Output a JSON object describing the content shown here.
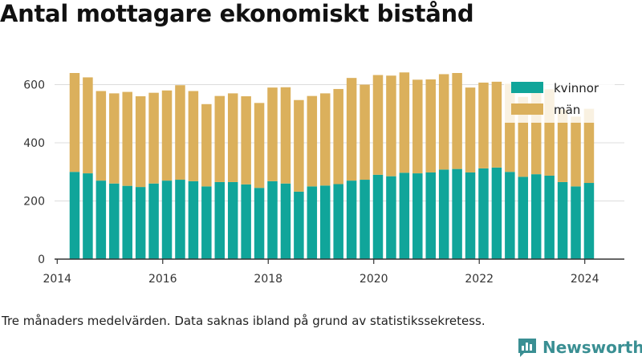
{
  "title": "Antal mottagare ekonomiskt bistånd",
  "note": "Tre månaders medelvärden. Data saknas ibland på grund av statistikssekretess.",
  "brand": "Newsworthy",
  "colors": {
    "kvinnor": "#10a59a",
    "man": "#dbb05c",
    "brand": "#3a8f93"
  },
  "legend": {
    "kvinnor": "kvinnor",
    "man": "män"
  },
  "chart_data": {
    "type": "bar",
    "stacked": true,
    "x_ticks": [
      2014,
      2016,
      2018,
      2020,
      2022,
      2024
    ],
    "y_ticks": [
      0,
      200,
      400,
      600
    ],
    "ylim": [
      0,
      720
    ],
    "xlim": [
      2013.95,
      2024.75
    ],
    "grid": true,
    "legend_position": "top-right",
    "x": [
      2014.33,
      2014.58,
      2014.83,
      2015.08,
      2015.33,
      2015.58,
      2015.83,
      2016.08,
      2016.33,
      2016.58,
      2016.83,
      2017.08,
      2017.33,
      2017.58,
      2017.83,
      2018.08,
      2018.33,
      2018.58,
      2018.83,
      2019.08,
      2019.33,
      2019.58,
      2019.83,
      2020.08,
      2020.33,
      2020.58,
      2020.83,
      2021.08,
      2021.33,
      2021.58,
      2021.83,
      2022.08,
      2022.33,
      2022.58,
      2022.83,
      2023.08,
      2023.33,
      2023.58,
      2023.83,
      2024.08
    ],
    "series": [
      {
        "name": "kvinnor",
        "values": [
          300,
          295,
          270,
          260,
          252,
          248,
          260,
          270,
          273,
          268,
          250,
          265,
          265,
          257,
          245,
          268,
          260,
          232,
          250,
          253,
          258,
          270,
          273,
          290,
          285,
          297,
          295,
          298,
          308,
          310,
          298,
          312,
          315,
          300,
          283,
          292,
          287,
          265,
          250,
          262
        ]
      },
      {
        "name": "män",
        "values": [
          340,
          330,
          308,
          310,
          323,
          312,
          312,
          310,
          325,
          310,
          283,
          296,
          305,
          303,
          292,
          322,
          331,
          315,
          311,
          317,
          327,
          353,
          327,
          343,
          346,
          345,
          322,
          320,
          328,
          330,
          292,
          295,
          295,
          303,
          275,
          285,
          297,
          250,
          240,
          255
        ]
      }
    ]
  }
}
